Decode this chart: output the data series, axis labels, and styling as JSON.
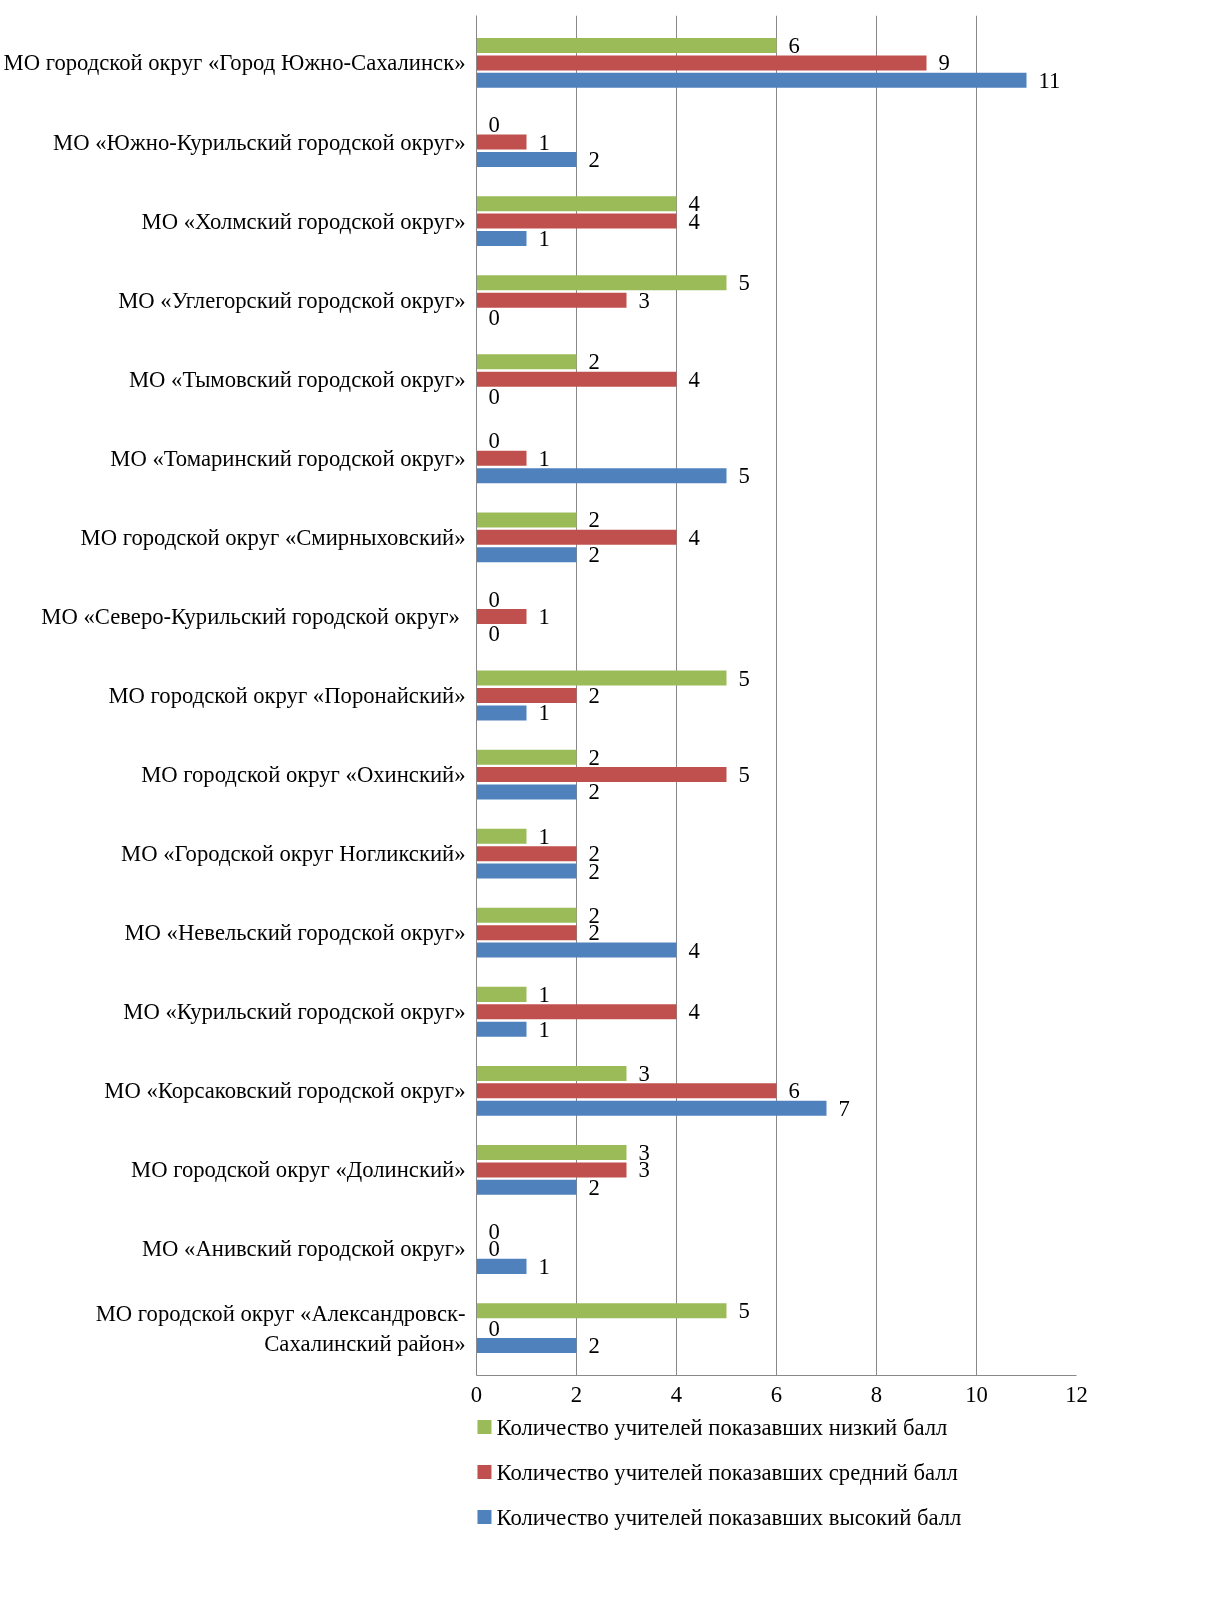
{
  "chart_data": {
    "type": "bar",
    "orientation": "horizontal",
    "categories": [
      "МО городской округ «Город Южно-Сахалинск»",
      "МО «Южно-Курильский городской округ»",
      "МО «Холмский городской округ»",
      "МО «Углегорский городской округ»",
      "МО «Тымовский городской округ»",
      "МО «Томаринский городской округ»",
      "МО городской округ «Смирныховский»",
      "МО  «Северо-Курильский городской округ»",
      "МО городской округ «Поронайский»",
      "МО городской округ «Охинский»",
      "МО «Городской округ Ногликский»",
      "МО «Невельский городской округ»",
      "МО «Курильский городской округ»",
      "МО «Корсаковский городской округ»",
      "МО городской округ «Долинский»",
      "МО «Анивский городской округ»",
      "МО городской округ «Александровск-\nСахалинский район»"
    ],
    "series": [
      {
        "name": "Количество учителей показавших низкий балл",
        "color": "#9bbb59",
        "values": [
          6,
          0,
          4,
          5,
          2,
          0,
          2,
          0,
          5,
          2,
          1,
          2,
          1,
          3,
          3,
          0,
          5
        ]
      },
      {
        "name": "Количество учителей показавших средний балл",
        "color": "#c0504d",
        "values": [
          9,
          1,
          4,
          3,
          4,
          1,
          4,
          1,
          2,
          5,
          2,
          2,
          4,
          6,
          3,
          0,
          0
        ]
      },
      {
        "name": "Количество учителей показавших высокий балл",
        "color": "#4f81bd",
        "values": [
          11,
          2,
          1,
          0,
          0,
          5,
          2,
          0,
          1,
          2,
          2,
          4,
          1,
          7,
          2,
          1,
          2
        ]
      }
    ],
    "xlim": [
      0,
      12
    ],
    "xticks": [
      0,
      2,
      4,
      6,
      8,
      10,
      12
    ],
    "grid": "x",
    "legend": "bottom",
    "data_labels": true
  }
}
